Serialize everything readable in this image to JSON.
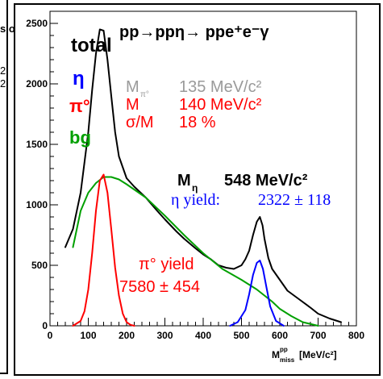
{
  "left_fragments": [
    "s,o",
    "2",
    "2"
  ],
  "chart_data": {
    "type": "line",
    "title": "pp→ppη→ ppe⁺e⁻γ",
    "xlabel_main": "M",
    "xlabel_sup": "pp",
    "xlabel_sub": "miss",
    "xlabel_unit": "[MeV/c²]",
    "xlim": [
      0,
      800
    ],
    "ylim": [
      0,
      2600
    ],
    "x_ticks": [
      0,
      100,
      200,
      300,
      400,
      500,
      600,
      700,
      800
    ],
    "y_ticks": [
      0,
      500,
      1000,
      1500,
      2000,
      2500
    ],
    "legend": [
      {
        "label": "total",
        "color": "#000000"
      },
      {
        "label": "η",
        "color": "#0000ff"
      },
      {
        "label": "π°",
        "color": "#ff0000"
      },
      {
        "label": "bg",
        "color": "#00a000"
      }
    ],
    "annotations": {
      "mpi0_label": "M",
      "mpi0_sub": "π°",
      "mpi0_value": "135 MeV/c²",
      "m_label": "M",
      "m_value": "140 MeV/c²",
      "sigma_label": "σ/M",
      "sigma_value": "18 %",
      "meta_label": "M",
      "meta_sub": "η",
      "meta_value": "548 MeV/c²",
      "eta_yield_label": "η yield:",
      "eta_yield_value": "2322 ± 118",
      "pi0_yield_label": "π° yield",
      "pi0_yield_value": "7580 ± 454"
    },
    "series": [
      {
        "name": "total",
        "color": "#000000",
        "x": [
          40,
          60,
          80,
          100,
          110,
          120,
          130,
          140,
          150,
          160,
          170,
          180,
          200,
          220,
          250,
          280,
          300,
          330,
          350,
          380,
          400,
          420,
          440,
          460,
          480,
          500,
          510,
          520,
          530,
          540,
          548,
          555,
          560,
          570,
          580,
          600,
          620,
          650,
          680,
          700,
          730,
          760
        ],
        "y": [
          650,
          800,
          1100,
          1600,
          1950,
          2250,
          2450,
          2440,
          2200,
          1900,
          1600,
          1400,
          1220,
          1150,
          1060,
          950,
          880,
          780,
          720,
          640,
          590,
          550,
          500,
          480,
          470,
          500,
          550,
          620,
          750,
          860,
          900,
          830,
          720,
          560,
          470,
          380,
          290,
          220,
          150,
          100,
          60,
          30
        ]
      },
      {
        "name": "bg",
        "color": "#00a000",
        "x": [
          60,
          80,
          100,
          120,
          140,
          160,
          180,
          200,
          250,
          300,
          350,
          400,
          450,
          500,
          540,
          560,
          580,
          600,
          630,
          660,
          700
        ],
        "y": [
          650,
          950,
          1100,
          1180,
          1230,
          1230,
          1210,
          1170,
          1060,
          910,
          750,
          600,
          470,
          380,
          300,
          250,
          200,
          140,
          80,
          30,
          0
        ]
      },
      {
        "name": "π°",
        "color": "#ff0000",
        "x": [
          60,
          80,
          90,
          100,
          110,
          120,
          130,
          140,
          150,
          160,
          170,
          180,
          190,
          200,
          210,
          220
        ],
        "y": [
          0,
          40,
          120,
          300,
          600,
          950,
          1200,
          1250,
          1100,
          800,
          480,
          250,
          100,
          30,
          8,
          0
        ]
      },
      {
        "name": "η",
        "color": "#0000ff",
        "x": [
          470,
          490,
          510,
          520,
          530,
          540,
          548,
          556,
          565,
          575,
          590,
          610
        ],
        "y": [
          0,
          30,
          130,
          260,
          420,
          520,
          540,
          470,
          320,
          160,
          40,
          0
        ]
      }
    ]
  }
}
